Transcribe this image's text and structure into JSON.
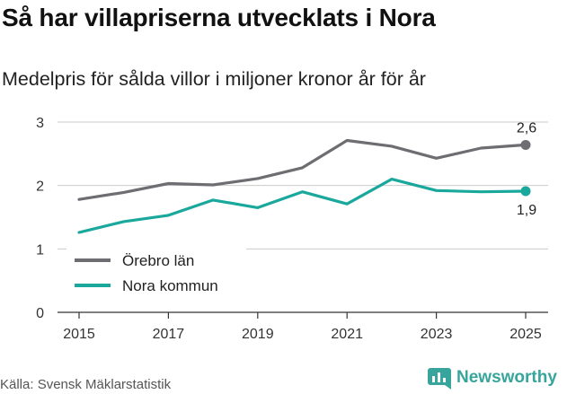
{
  "header": {
    "title": "Så har villapriserna utvecklats i Nora",
    "subtitle": "Medelpris för sålda villor i miljoner kronor år för år"
  },
  "footer": {
    "source": "Källa: Svensk Mäklarstatistik",
    "brand": "Newsworthy",
    "brand_icon": "bar-chart-icon"
  },
  "colors": {
    "orebro": "#6e6d72",
    "nora": "#1aa89c",
    "grid": "#cccccc",
    "axis": "#333333",
    "brand": "#37a59c"
  },
  "chart_data": {
    "type": "line",
    "x": [
      2015,
      2016,
      2017,
      2018,
      2019,
      2020,
      2021,
      2022,
      2023,
      2024,
      2025
    ],
    "series": [
      {
        "name": "Örebro län",
        "color": "#6e6d72",
        "values": [
          1.78,
          1.89,
          2.03,
          2.01,
          2.11,
          2.28,
          2.71,
          2.62,
          2.43,
          2.59,
          2.64
        ],
        "end_label": "2,6"
      },
      {
        "name": "Nora kommun",
        "color": "#1aa89c",
        "values": [
          1.26,
          1.43,
          1.53,
          1.77,
          1.65,
          1.9,
          1.71,
          2.1,
          1.92,
          1.9,
          1.91
        ],
        "end_label": "1,9"
      }
    ],
    "yticks": [
      0,
      1,
      2,
      3
    ],
    "ytick_labels": [
      "0",
      "1",
      "2",
      "3"
    ],
    "xticks": [
      2015,
      2017,
      2019,
      2021,
      2023,
      2025
    ],
    "xtick_labels": [
      "2015",
      "2017",
      "2019",
      "2021",
      "2023",
      "2025"
    ],
    "ylim": [
      0,
      3
    ],
    "xlim": [
      2015,
      2025
    ],
    "legend": "bottom-left",
    "title": "Så har villapriserna utvecklats i Nora",
    "ylabel": "",
    "xlabel": ""
  }
}
